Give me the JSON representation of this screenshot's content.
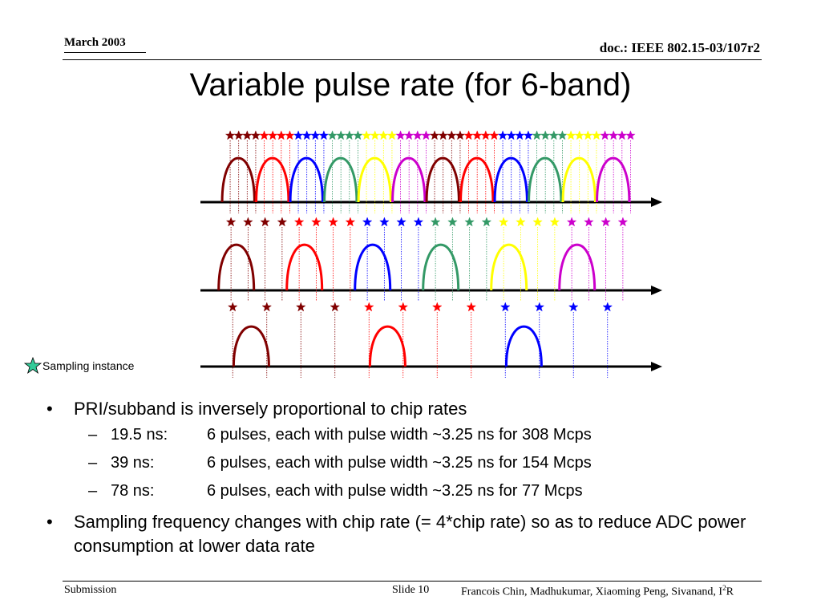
{
  "header": {
    "date": "March 2003",
    "doc_id": "doc.: IEEE 802.15-03/107r2"
  },
  "slide_title": "Variable pulse rate (for 6-band)",
  "diagram": {
    "pulse_colors": [
      "#800000",
      "#ff0000",
      "#0000ff",
      "#339966",
      "#ffff00",
      "#cc00cc"
    ],
    "legend_star_color": "#33cc99",
    "legend_label": "Sampling instance",
    "rows": [
      {
        "pulses": 12,
        "stars": 48
      },
      {
        "pulses": 6,
        "stars": 24
      },
      {
        "pulses": 3,
        "stars": 12
      }
    ]
  },
  "bullets": [
    {
      "text": "PRI/subband is inversely proportional to chip rates",
      "sub": [
        {
          "label": "19.5 ns:",
          "text": "6 pulses, each with pulse width ~3.25 ns for 308 Mcps"
        },
        {
          "label": "39 ns:",
          "text": "6 pulses, each with pulse width ~3.25 ns for 154 Mcps"
        },
        {
          "label": "78 ns:",
          "text": "6 pulses, each with pulse width ~3.25 ns for 77 Mcps"
        }
      ]
    },
    {
      "text": "Sampling frequency changes with chip rate (= 4*chip rate) so as to reduce ADC power consumption at lower data rate",
      "sub": []
    }
  ],
  "footer": {
    "left": "Submission",
    "slide": "Slide 10",
    "authors": "Francois Chin, Madhukumar, Xiaoming Peng, Sivanand, I",
    "authors_sup": "2",
    "authors_end": "R"
  }
}
